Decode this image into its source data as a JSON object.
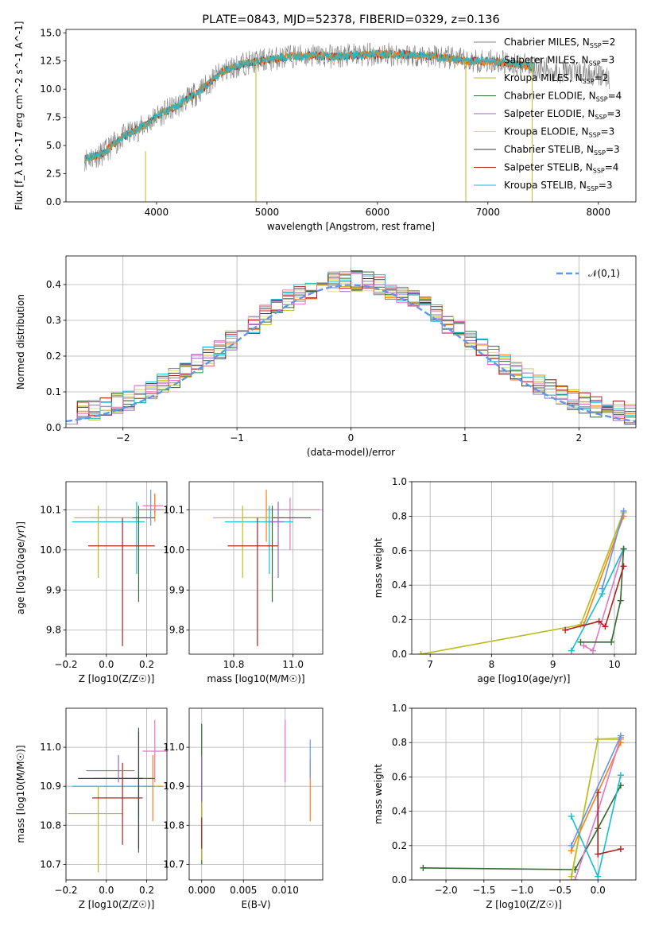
{
  "figure": {
    "colors": [
      "#808080",
      "#ff7f0e",
      "#bcbd22",
      "#2f6b2f",
      "#9467bd",
      "#dbdb8d",
      "#3a3a3a",
      "#b22222",
      "#17becf",
      "#e377c2",
      "#6495ed"
    ]
  },
  "chart_data": [
    {
      "id": "spectrum",
      "type": "line",
      "title": "PLATE=0843, MJD=52378, FIBERID=0329, z=0.136",
      "xlabel": "wavelength [Angstrom, rest frame]",
      "ylabel": "Flux [f_λ 10^-17 erg cm^-2 s^-1 A^-1]",
      "xlim": [
        3180,
        8340
      ],
      "ylim": [
        0,
        15.3
      ],
      "xticks": [
        4000,
        5000,
        6000,
        7000,
        8000
      ],
      "yticks": [
        0.0,
        2.5,
        5.0,
        7.5,
        10.0,
        12.5,
        15.0
      ],
      "x": [
        3350,
        3500,
        3700,
        3900,
        4000,
        4200,
        4400,
        4600,
        4800,
        5000,
        5200,
        5400,
        5600,
        5800,
        6000,
        6200,
        6400,
        6600,
        6800,
        7000,
        7200,
        7400,
        7600,
        7800,
        8000,
        8100
      ],
      "y": [
        3.8,
        4.2,
        5.8,
        6.8,
        7.6,
        8.6,
        9.9,
        11.6,
        12.3,
        12.6,
        12.9,
        13.0,
        12.9,
        13.0,
        13.1,
        13.1,
        13.0,
        12.8,
        12.5,
        12.5,
        12.3,
        12.0,
        11.6,
        11.5,
        11.3,
        11.0
      ],
      "noise_y": 1.1,
      "vlines": [
        {
          "x": 3900,
          "y": [
            0,
            4.5
          ]
        },
        {
          "x": 4900,
          "y": [
            0,
            12.5
          ]
        },
        {
          "x": 6800,
          "y": [
            0,
            12.5
          ]
        },
        {
          "x": 7400,
          "y": [
            0,
            12.3
          ]
        }
      ],
      "grid": false,
      "legend_position": "upper right",
      "series": [
        {
          "name": "Chabrier MILES, N_SSP=2"
        },
        {
          "name": "Salpeter MILES, N_SSP=3"
        },
        {
          "name": "Kroupa MILES, N_SSP=2"
        },
        {
          "name": "Chabrier ELODIE, N_SSP=4"
        },
        {
          "name": "Salpeter ELODIE, N_SSP=3"
        },
        {
          "name": "Kroupa ELODIE, N_SSP=3"
        },
        {
          "name": "Chabrier STELIB, N_SSP=3"
        },
        {
          "name": "Salpeter STELIB, N_SSP=4"
        },
        {
          "name": "Kroupa STELIB, N_SSP=3"
        }
      ]
    },
    {
      "id": "residuals",
      "type": "histogram",
      "xlabel": "(data-model)/error",
      "ylabel": "Normed distribution",
      "xlim": [
        -2.5,
        2.5
      ],
      "ylim": [
        0,
        0.48
      ],
      "xticks": [
        -2,
        -1,
        0,
        1,
        2
      ],
      "yticks": [
        0.0,
        0.1,
        0.2,
        0.3,
        0.4
      ],
      "bin_width": 0.1,
      "grid": true,
      "legend": "𝒩(0,1)",
      "legend_position": "upper right",
      "curve": {
        "type": "normal",
        "mean": 0,
        "sigma": 1
      }
    },
    {
      "id": "age-vs-Z",
      "type": "errorbar",
      "xlabel": "Z [log10(Z/Z☉)]",
      "ylabel": "age [log10(age/yr)]",
      "xlim": [
        -0.2,
        0.3
      ],
      "ylim": [
        9.74,
        10.17
      ],
      "xticks": [
        -0.2,
        0.0,
        0.2
      ],
      "yticks": [
        9.8,
        9.9,
        10.0,
        10.1
      ],
      "grid": true,
      "points": [
        {
          "c": 9,
          "x": 0.24,
          "xerr": [
            0.06,
            0.04
          ],
          "y": 10.11,
          "yerr": [
            0.02,
            0.03
          ]
        },
        {
          "c": 1,
          "x": 0.24,
          "xerr": [
            0.08,
            0.05
          ],
          "y": 10.1,
          "yerr": [
            0.03,
            0.04
          ]
        },
        {
          "c": 8,
          "x": 0.15,
          "xerr": [
            0.32,
            0.04
          ],
          "y": 10.07,
          "yerr": [
            0.13,
            0.05
          ]
        },
        {
          "c": 3,
          "x": 0.16,
          "xerr": [
            0.24,
            0.08
          ],
          "y": 10.08,
          "yerr": [
            0.21,
            0.03
          ]
        },
        {
          "c": 2,
          "x": -0.04,
          "xerr": [
            0.12,
            0.17
          ],
          "y": 10.08,
          "yerr": [
            0.15,
            0.03
          ]
        },
        {
          "c": 7,
          "x": 0.08,
          "xerr": [
            0.17,
            0.16
          ],
          "y": 10.01,
          "yerr": [
            0.25,
            0.07
          ]
        },
        {
          "c": 10,
          "x": 0.22,
          "xerr": [
            0.06,
            0.05
          ],
          "y": 10.1,
          "yerr": [
            0.04,
            0.05
          ]
        }
      ]
    },
    {
      "id": "age-vs-mass",
      "type": "errorbar",
      "xlabel": "mass [log10(M/M☉)]",
      "ylabel": "",
      "xlim": [
        10.65,
        11.1
      ],
      "ylim": [
        9.74,
        10.17
      ],
      "xticks": [
        10.8,
        11.0
      ],
      "yticks": [
        9.8,
        9.9,
        10.0,
        10.1
      ],
      "grid": true,
      "points": [
        {
          "c": 9,
          "x": 10.99,
          "xerr": [
            0.08,
            0.1
          ],
          "y": 10.1,
          "yerr": [
            0.1,
            0.03
          ]
        },
        {
          "c": 1,
          "x": 10.91,
          "xerr": [
            0.08,
            0.06
          ],
          "y": 10.08,
          "yerr": [
            0.06,
            0.07
          ]
        },
        {
          "c": 8,
          "x": 10.92,
          "xerr": [
            0.15,
            0.08
          ],
          "y": 10.07,
          "yerr": [
            0.13,
            0.04
          ]
        },
        {
          "c": 3,
          "x": 10.93,
          "xerr": [
            0.1,
            0.13
          ],
          "y": 10.08,
          "yerr": [
            0.21,
            0.03
          ]
        },
        {
          "c": 2,
          "x": 10.83,
          "xerr": [
            0.1,
            0.1
          ],
          "y": 10.08,
          "yerr": [
            0.15,
            0.03
          ]
        },
        {
          "c": 7,
          "x": 10.88,
          "xerr": [
            0.1,
            0.07
          ],
          "y": 10.01,
          "yerr": [
            0.25,
            0.07
          ]
        },
        {
          "c": 4,
          "x": 10.95,
          "xerr": [
            0.03,
            0.02
          ],
          "y": 10.07,
          "yerr": [
            0.14,
            0.05
          ]
        }
      ]
    },
    {
      "id": "massweight-vs-age",
      "type": "line",
      "xlabel": "age [log10(age/yr)]",
      "ylabel": "mass weight",
      "xlim": [
        6.7,
        10.35
      ],
      "ylim": [
        0,
        1.0
      ],
      "xticks": [
        7,
        8,
        9,
        10
      ],
      "yticks": [
        0.0,
        0.2,
        0.4,
        0.6,
        0.8,
        1.0
      ],
      "grid": true,
      "series": [
        {
          "c": 5,
          "x": [
            6.85,
            9.45,
            10.15
          ],
          "y": [
            0.0,
            0.17,
            0.83
          ]
        },
        {
          "c": 2,
          "x": [
            6.85,
            9.45,
            10.15
          ],
          "y": [
            0.0,
            0.17,
            0.82
          ]
        },
        {
          "c": 1,
          "x": [
            9.5,
            10.15
          ],
          "y": [
            0.17,
            0.8
          ]
        },
        {
          "c": 9,
          "x": [
            9.5,
            9.65,
            10.15
          ],
          "y": [
            0.05,
            0.02,
            0.61
          ]
        },
        {
          "c": 8,
          "x": [
            9.3,
            9.8,
            10.15
          ],
          "y": [
            0.02,
            0.35,
            0.61
          ]
        },
        {
          "c": 3,
          "x": [
            9.45,
            9.95,
            10.1,
            10.15
          ],
          "y": [
            0.07,
            0.07,
            0.31,
            0.61
          ]
        },
        {
          "c": 7,
          "x": [
            9.2,
            9.75,
            9.85,
            10.15
          ],
          "y": [
            0.14,
            0.19,
            0.16,
            0.51
          ]
        },
        {
          "c": 10,
          "x": [
            9.8,
            10.15
          ],
          "y": [
            0.38,
            0.83
          ]
        }
      ]
    },
    {
      "id": "mass-vs-Z",
      "type": "errorbar",
      "xlabel": "Z [log10(Z/Z☉)]",
      "ylabel": "mass [log10(M/M☉)]",
      "xlim": [
        -0.2,
        0.3
      ],
      "ylim": [
        10.66,
        11.1
      ],
      "xticks": [
        -0.2,
        0.0,
        0.2
      ],
      "yticks": [
        10.7,
        10.8,
        10.9,
        11.0
      ],
      "grid": true,
      "points": [
        {
          "c": 9,
          "x": 0.24,
          "xerr": [
            0.06,
            0.06
          ],
          "y": 10.99,
          "yerr": [
            0.08,
            0.08
          ]
        },
        {
          "c": 1,
          "x": 0.23,
          "xerr": [
            0.05,
            0.05
          ],
          "y": 10.9,
          "yerr": [
            0.09,
            0.08
          ]
        },
        {
          "c": 8,
          "x": 0.16,
          "xerr": [
            0.33,
            0.08
          ],
          "y": 10.9,
          "yerr": [
            0.08,
            0.03
          ]
        },
        {
          "c": 3,
          "x": 0.16,
          "xerr": [
            0.22,
            0.08
          ],
          "y": 10.92,
          "yerr": [
            0.19,
            0.13
          ]
        },
        {
          "c": 6,
          "x": 0.16,
          "xerr": [
            0.3,
            0.02
          ],
          "y": 10.92,
          "yerr": [
            0.18,
            0.12
          ]
        },
        {
          "c": 2,
          "x": -0.04,
          "xerr": [
            0.15,
            0.12
          ],
          "y": 10.83,
          "yerr": [
            0.15,
            0.07
          ]
        },
        {
          "c": 7,
          "x": 0.08,
          "xerr": [
            0.15,
            0.1
          ],
          "y": 10.87,
          "yerr": [
            0.12,
            0.09
          ]
        },
        {
          "c": 4,
          "x": 0.06,
          "xerr": [
            0.16,
            0.08
          ],
          "y": 10.94,
          "yerr": [
            0.03,
            0.04
          ]
        }
      ]
    },
    {
      "id": "mass-vs-ebv",
      "type": "errorbar",
      "xlabel": "E(B-V)",
      "ylabel": "",
      "xlim": [
        -0.0015,
        0.0145
      ],
      "ylim": [
        10.66,
        11.1
      ],
      "xticks": [
        0.0,
        0.005,
        0.01
      ],
      "yticks": [
        10.7,
        10.8,
        10.9,
        11.0
      ],
      "grid": true,
      "points": [
        {
          "c": 3,
          "x": 0.0,
          "y": 10.88,
          "yerr": [
            0.18,
            0.18
          ]
        },
        {
          "c": 4,
          "x": 0.0,
          "y": 10.92,
          "yerr": [
            0.1,
            0.06
          ]
        },
        {
          "c": 2,
          "x": 0.0,
          "y": 10.8,
          "yerr": [
            0.09,
            0.06
          ]
        },
        {
          "c": 7,
          "x": 0.0,
          "y": 10.78,
          "yerr": [
            0.04,
            0.04
          ]
        },
        {
          "c": 9,
          "x": 0.01,
          "y": 10.99,
          "yerr": [
            0.08,
            0.08
          ]
        },
        {
          "c": 1,
          "x": 0.013,
          "y": 10.9,
          "yerr": [
            0.09,
            0.07
          ]
        },
        {
          "c": 10,
          "x": 0.013,
          "y": 10.98,
          "yerr": [
            0.06,
            0.04
          ]
        }
      ]
    },
    {
      "id": "massweight-vs-Z",
      "type": "line",
      "xlabel": "Z [log10(Z/Z☉)]",
      "ylabel": "mass weight",
      "xlim": [
        -2.45,
        0.5
      ],
      "ylim": [
        0,
        1.0
      ],
      "xticks": [
        -2.0,
        -1.5,
        -1.0,
        -0.5,
        0.0
      ],
      "yticks": [
        0.0,
        0.2,
        0.4,
        0.6,
        0.8,
        1.0
      ],
      "grid": true,
      "series": [
        {
          "c": 3,
          "x": [
            -2.3,
            -0.3,
            0.0,
            0.3
          ],
          "y": [
            0.07,
            0.06,
            0.3,
            0.55
          ]
        },
        {
          "c": 5,
          "x": [
            -0.35,
            0.0,
            0.3
          ],
          "y": [
            0.0,
            0.82,
            0.83
          ]
        },
        {
          "c": 2,
          "x": [
            -0.35,
            0.0,
            0.3
          ],
          "y": [
            0.02,
            0.82,
            0.82
          ]
        },
        {
          "c": 1,
          "x": [
            -0.35,
            0.3
          ],
          "y": [
            0.17,
            0.8
          ]
        },
        {
          "c": 9,
          "x": [
            -0.3,
            0.0,
            0.3
          ],
          "y": [
            0.0,
            0.4,
            0.83
          ]
        },
        {
          "c": 8,
          "x": [
            -0.35,
            0.0,
            0.3
          ],
          "y": [
            0.37,
            0.02,
            0.61
          ]
        },
        {
          "c": 7,
          "x": [
            0.0,
            0.0,
            0.3
          ],
          "y": [
            0.51,
            0.15,
            0.18
          ]
        },
        {
          "c": 10,
          "x": [
            -0.35,
            0.3
          ],
          "y": [
            0.2,
            0.84
          ]
        }
      ]
    }
  ]
}
